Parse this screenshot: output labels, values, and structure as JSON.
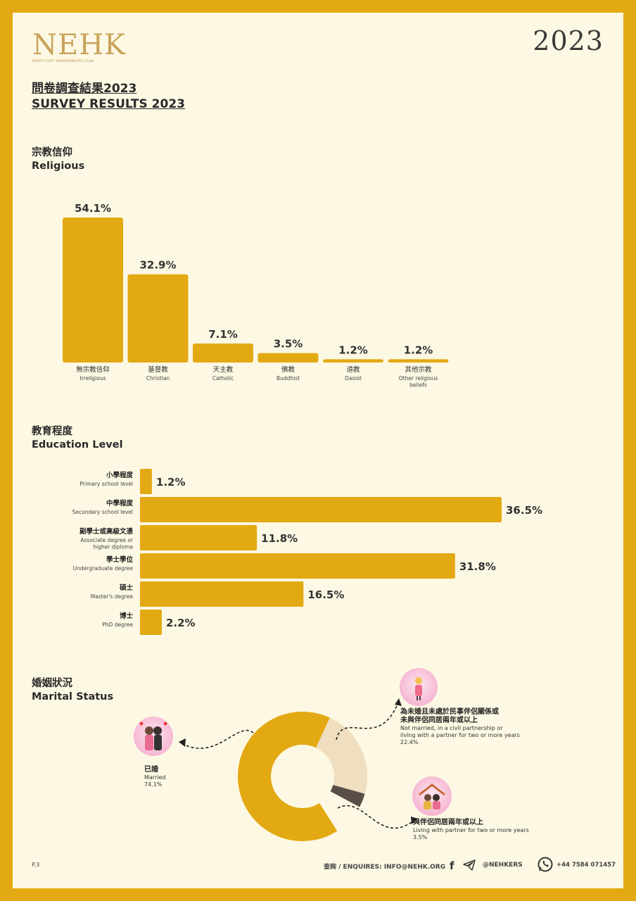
{
  "header": {
    "logo_text": "NEHK",
    "logo_subtitle": "NORTH EAST HONGKONGERS CLUB",
    "year": "2023",
    "title_zh": "問卷調查結果2023",
    "title_en": "SURVEY RESULTS 2023"
  },
  "sections": {
    "religious": {
      "title_zh": "宗教信仰",
      "title_en": "Religious"
    },
    "education": {
      "title_zh": "教育程度",
      "title_en": "Education Level"
    },
    "marital": {
      "title_zh": "婚姻狀況",
      "title_en": "Marital Status"
    }
  },
  "colors": {
    "border": "#e3a912",
    "bar": "#e3a912",
    "background": "#fdf8e3",
    "donut_light": "#efdfc0",
    "donut_dark": "#5a4e48"
  },
  "chart_data": [
    {
      "type": "bar",
      "title": "宗教信仰 Religious",
      "categories": [
        {
          "zh": "無宗教信仰",
          "en": [
            "Irreligious"
          ]
        },
        {
          "zh": "基督教",
          "en": [
            "Christian"
          ]
        },
        {
          "zh": "天主教",
          "en": [
            "Catholic"
          ]
        },
        {
          "zh": "佛教",
          "en": [
            "Buddhist"
          ]
        },
        {
          "zh": "道教",
          "en": [
            "Daoist"
          ]
        },
        {
          "zh": "其他宗教",
          "en": [
            "Other religious",
            "beliefs"
          ]
        }
      ],
      "values": [
        54.1,
        32.9,
        7.1,
        3.5,
        1.2,
        1.2
      ],
      "labels": [
        "54.1%",
        "32.9%",
        "7.1%",
        "3.5%",
        "1.2%",
        "1.2%"
      ],
      "unit": "%"
    },
    {
      "type": "bar",
      "orientation": "horizontal",
      "title": "教育程度 Education Level",
      "categories": [
        {
          "zh": "小學程度",
          "en": [
            "Primary school level"
          ]
        },
        {
          "zh": "中學程度",
          "en": [
            "Secondary school level"
          ]
        },
        {
          "zh": "副學士或高級文憑",
          "en": [
            "Associate degree or",
            "higher diploma"
          ]
        },
        {
          "zh": "學士學位",
          "en": [
            "Undergraduate degree"
          ]
        },
        {
          "zh": "碩士",
          "en": [
            "Master's degree"
          ]
        },
        {
          "zh": "博士",
          "en": [
            "PhD degree"
          ]
        }
      ],
      "values": [
        1.2,
        36.5,
        11.8,
        31.8,
        16.5,
        2.2
      ],
      "labels": [
        "1.2%",
        "36.5%",
        "11.8%",
        "31.8%",
        "16.5%",
        "2.2%"
      ],
      "unit": "%"
    },
    {
      "type": "pie",
      "variant": "donut",
      "title": "婚姻狀況 Marital Status",
      "slices": [
        {
          "zh": "已婚",
          "en": "Married",
          "value": 74.1,
          "label": "74.1%",
          "color": "#e3a912"
        },
        {
          "zh": "為未婚且未處於民事伴侶關係或未與伴侶同居兩年或以上",
          "en": "Not married, in a civil partnership or living with a partner for two or more years",
          "value": 22.4,
          "label": "22.4%",
          "color": "#efdfc0"
        },
        {
          "zh": "與伴侶同居兩年或以上",
          "en": "Living with partner for two or more years",
          "value": 3.5,
          "label": "3.5%",
          "color": "#5a4e48"
        }
      ]
    }
  ],
  "marital_labels": {
    "married": {
      "zh": "已婚",
      "en": "Married",
      "pct": "74.1%"
    },
    "not_married": {
      "zh_line1": "為未婚且未處於民事伴侶關係或",
      "zh_line2": "未與伴侶同居兩年或以上",
      "en_line1": "Not married, in a civil partnership or",
      "en_line2": "living with a partner for two or more years",
      "pct": "22.4%"
    },
    "cohabiting": {
      "zh": "與伴侶同居兩年或以上",
      "en": "Living with partner for two or more years",
      "pct": "3.5%"
    }
  },
  "footer": {
    "page": "P.3",
    "enquiries": "查詢 / ENQUIRES:  INFO@NEHK.ORG",
    "facebook_icon": "facebook-icon",
    "telegram_icon": "telegram-icon",
    "social_handle": "@NEHKERS",
    "whatsapp_icon": "whatsapp-icon",
    "phone": "+44 7584 071457"
  }
}
